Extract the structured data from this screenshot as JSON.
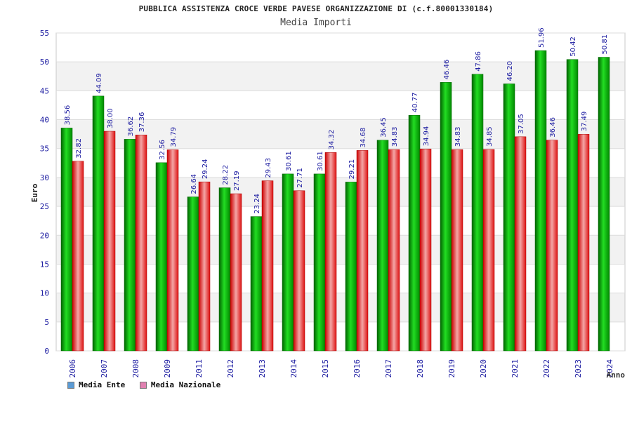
{
  "chart_data": {
    "type": "bar",
    "title": "PUBBLICA ASSISTENZA CROCE VERDE PAVESE ORGANIZZAZIONE DI (c.f.80001330184)",
    "subtitle": "Media Importi",
    "ylabel": "Euro",
    "xlabel": "Anno",
    "ylim": [
      0,
      55
    ],
    "yticks": [
      0,
      5,
      10,
      15,
      20,
      25,
      30,
      35,
      40,
      45,
      50,
      55
    ],
    "grid": true,
    "legend_position": "bottom-left",
    "categories": [
      "2006",
      "2007",
      "2008",
      "2009",
      "2011",
      "2012",
      "2013",
      "2014",
      "2015",
      "2016",
      "2017",
      "2018",
      "2019",
      "2020",
      "2021",
      "2022",
      "2023",
      "2024"
    ],
    "series": [
      {
        "name": "Media Ente",
        "color": "#00aa00",
        "legend_color": "#5b9bd5",
        "values": [
          38.56,
          44.09,
          36.62,
          32.56,
          26.64,
          28.22,
          23.24,
          30.61,
          30.61,
          29.21,
          36.45,
          40.77,
          46.46,
          47.86,
          46.2,
          51.96,
          50.42,
          50.81
        ],
        "labels": [
          "38.56",
          "44.09",
          "36.62",
          "32.56",
          "26.64",
          "28.22",
          "23.24",
          "30.61",
          "30.61",
          "29.21",
          "36.45",
          "40.77",
          "46.46",
          "47.86",
          "46.20",
          "51.96",
          "50.42",
          "50.81"
        ]
      },
      {
        "name": "Media Nazionale",
        "color": "#e02020",
        "legend_color": "#e080b0",
        "values": [
          32.82,
          38.0,
          37.36,
          34.79,
          29.24,
          27.19,
          29.43,
          27.71,
          34.32,
          34.68,
          34.83,
          34.94,
          34.83,
          34.85,
          37.05,
          36.46,
          37.49,
          null
        ],
        "labels": [
          "32.82",
          "38.00",
          "37.36",
          "34.79",
          "29.24",
          "27.19",
          "29.43",
          "27.71",
          "34.32",
          "34.68",
          "34.83",
          "34.94",
          "34.83",
          "34.85",
          "37.05",
          "36.46",
          "37.49",
          ""
        ]
      }
    ]
  }
}
